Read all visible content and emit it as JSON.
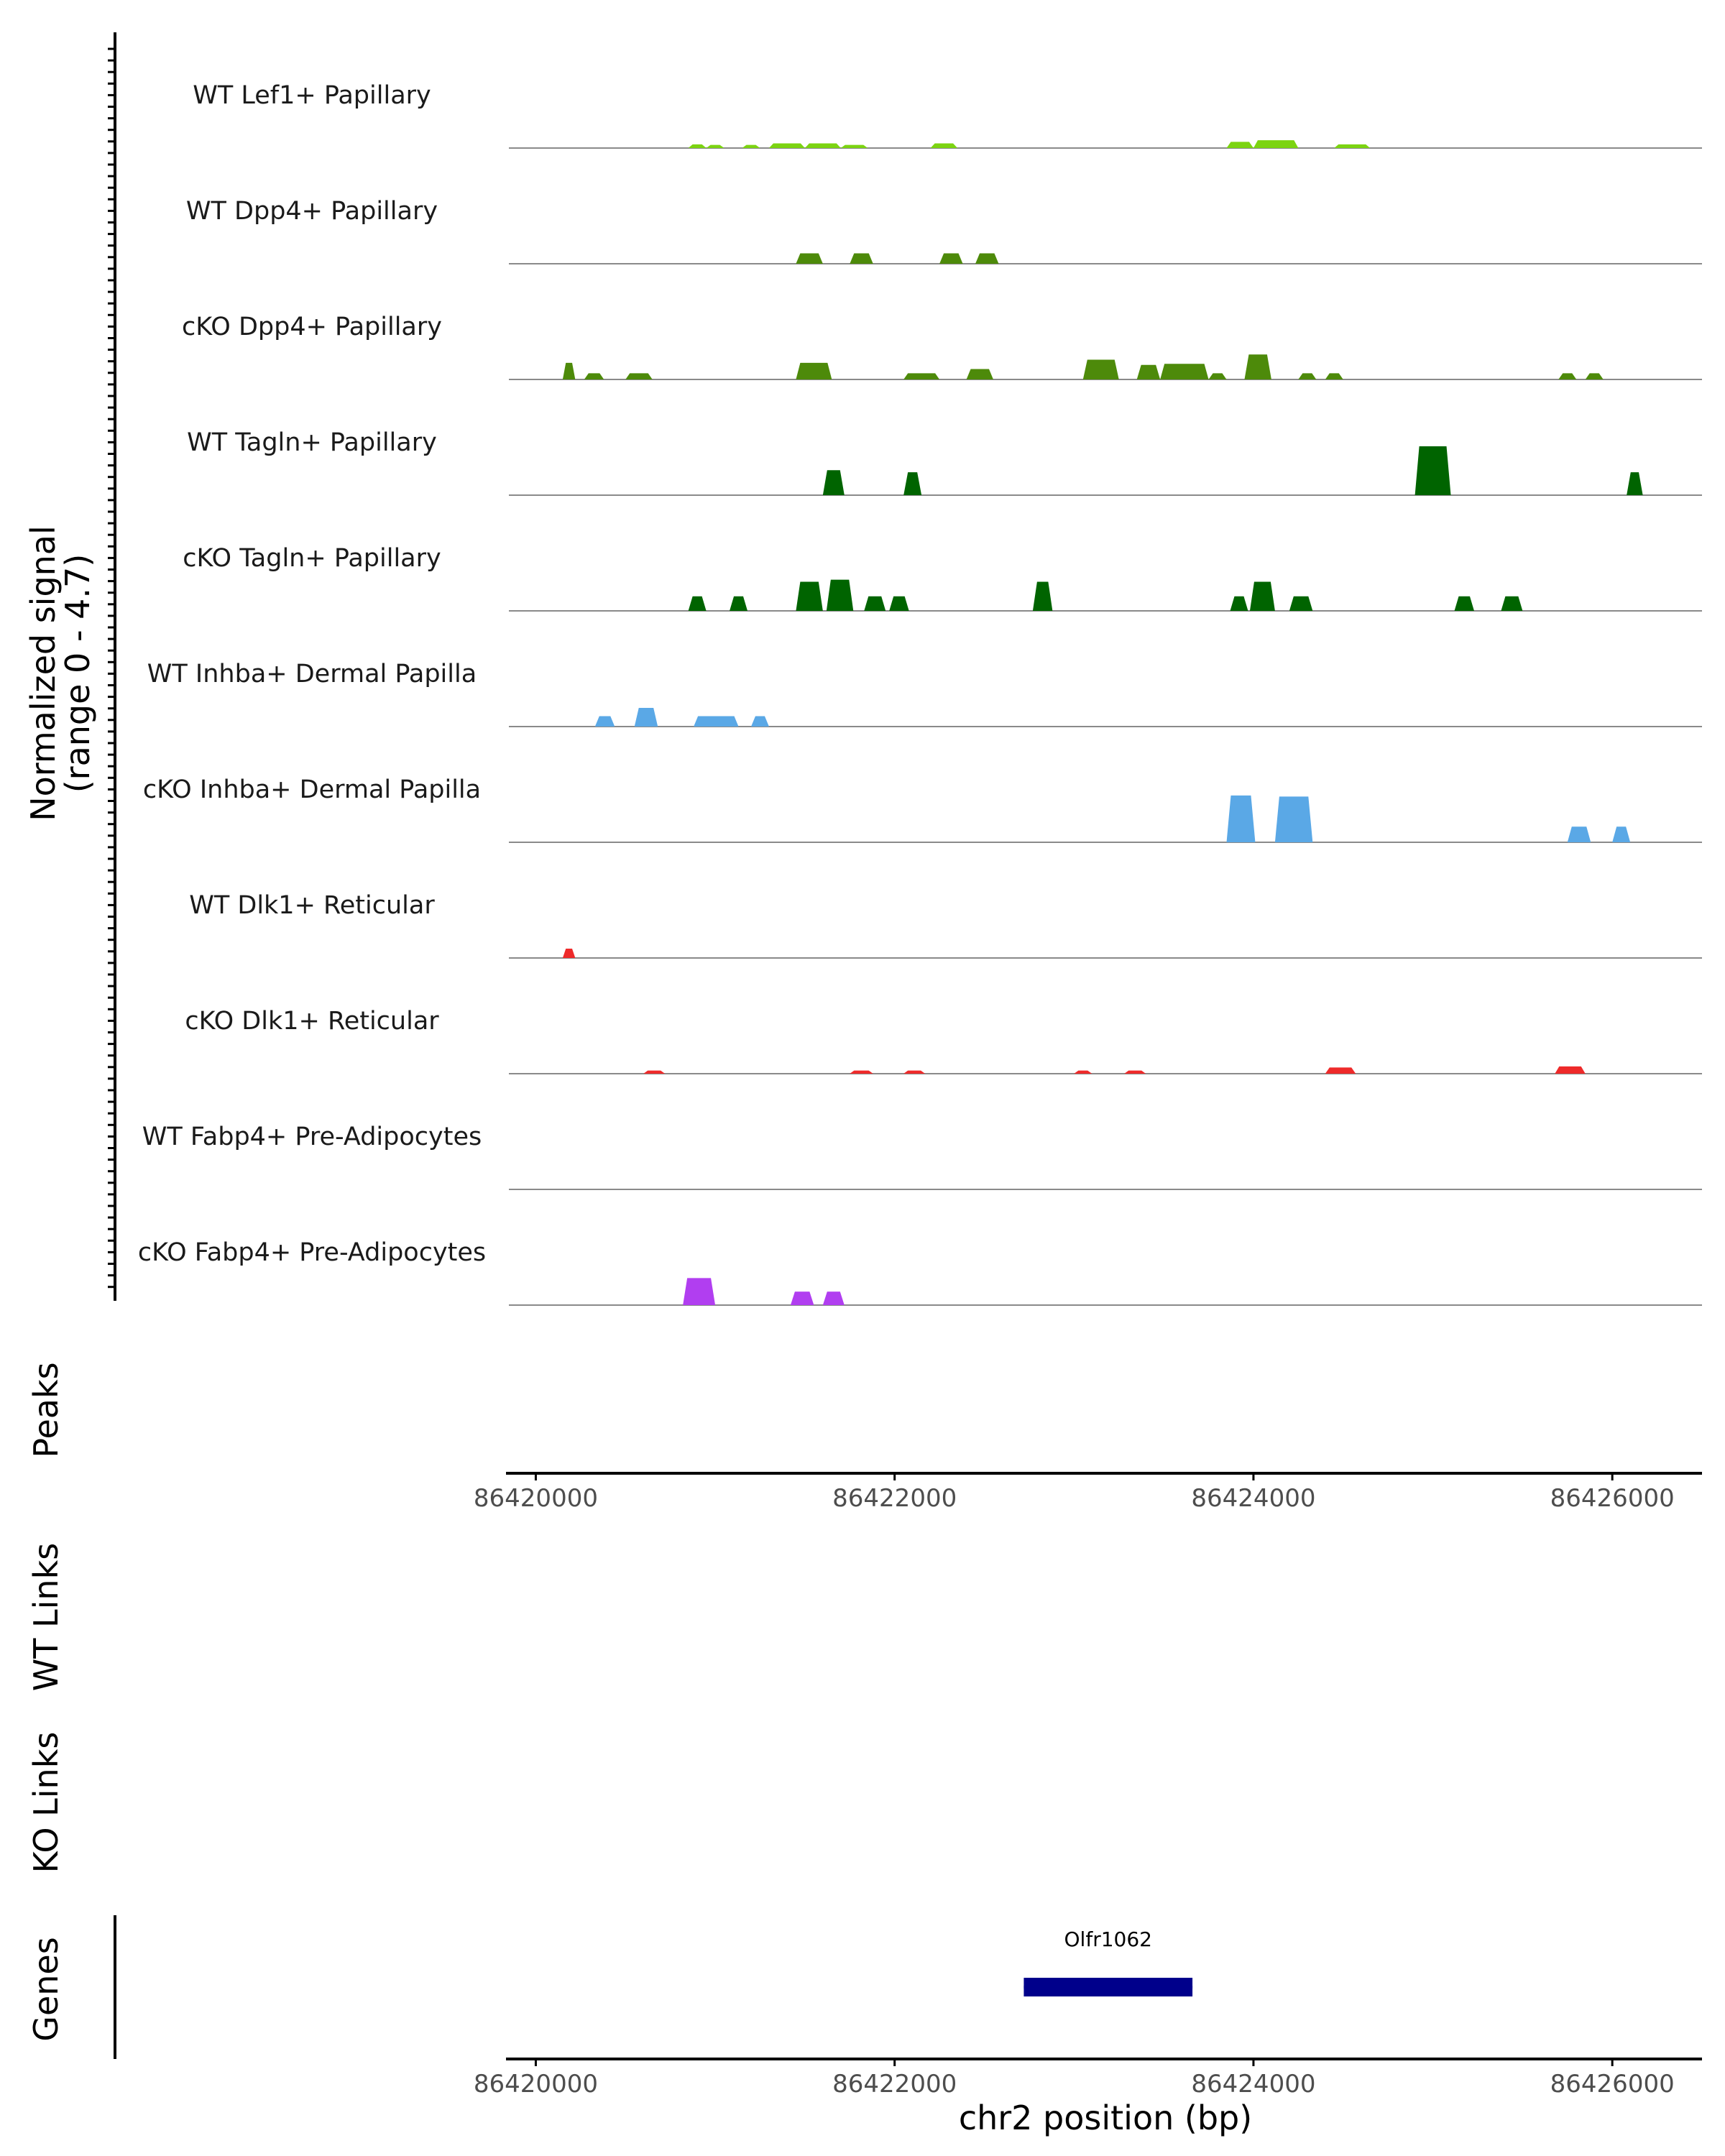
{
  "chart_data": {
    "type": "area",
    "title": "",
    "ylabel_line1": "Normalized signal",
    "ylabel_line2": "(range 0 - 4.7)",
    "y_range": [
      0,
      4.7
    ],
    "x_range": [
      86419850,
      86426500
    ],
    "colors": {
      "lef1": "#7cd411",
      "dpp4": "#4d8a0a",
      "tagln": "#006400",
      "inhba": "#5aa8e6",
      "dlk1": "#ee2a2a",
      "fabp4": "#b13ef0",
      "gene": "#00008b",
      "axis": "#000000",
      "baseline": "#8a8a8a"
    },
    "tracks": [
      {
        "label": "WT Lef1+ Papillary",
        "color_key": "lef1",
        "peaks": [
          [
            86420850,
            86420950,
            0.35
          ],
          [
            86420950,
            86421050,
            0.3
          ],
          [
            86421150,
            86421250,
            0.3
          ],
          [
            86421300,
            86421500,
            0.45
          ],
          [
            86421500,
            86421700,
            0.45
          ],
          [
            86421700,
            86421850,
            0.3
          ],
          [
            86422200,
            86422350,
            0.45
          ],
          [
            86423850,
            86424000,
            0.6
          ],
          [
            86424000,
            86424250,
            0.75
          ],
          [
            86424450,
            86424650,
            0.35
          ]
        ]
      },
      {
        "label": "WT Dpp4+ Papillary",
        "color_key": "dpp4",
        "peaks": [
          [
            86421450,
            86421600,
            1.0
          ],
          [
            86421750,
            86421880,
            1.0
          ],
          [
            86422250,
            86422380,
            1.0
          ],
          [
            86422450,
            86422580,
            1.0
          ]
        ]
      },
      {
        "label": "cKO Dpp4+ Papillary",
        "color_key": "dpp4",
        "peaks": [
          [
            86420150,
            86420220,
            1.6
          ],
          [
            86420270,
            86420380,
            0.6
          ],
          [
            86420500,
            86420650,
            0.6
          ],
          [
            86421450,
            86421650,
            1.6
          ],
          [
            86422050,
            86422250,
            0.6
          ],
          [
            86422400,
            86422550,
            1.0
          ],
          [
            86423050,
            86423250,
            1.9
          ],
          [
            86423350,
            86423480,
            1.4
          ],
          [
            86423480,
            86423750,
            1.5
          ],
          [
            86423750,
            86423850,
            0.6
          ],
          [
            86423950,
            86424100,
            2.4
          ],
          [
            86424250,
            86424350,
            0.6
          ],
          [
            86424400,
            86424500,
            0.6
          ],
          [
            86425700,
            86425800,
            0.6
          ],
          [
            86425850,
            86425950,
            0.6
          ]
        ]
      },
      {
        "label": "WT Tagln+ Papillary",
        "color_key": "tagln",
        "peaks": [
          [
            86421600,
            86421720,
            2.4
          ],
          [
            86422050,
            86422150,
            2.2
          ],
          [
            86424900,
            86425100,
            4.7
          ],
          [
            86426080,
            86426170,
            2.2
          ]
        ]
      },
      {
        "label": "cKO Tagln+ Papillary",
        "color_key": "tagln",
        "peaks": [
          [
            86420850,
            86420950,
            1.4
          ],
          [
            86421080,
            86421180,
            1.4
          ],
          [
            86421450,
            86421600,
            2.8
          ],
          [
            86421620,
            86421770,
            3.0
          ],
          [
            86421830,
            86421950,
            1.4
          ],
          [
            86421970,
            86422080,
            1.4
          ],
          [
            86422770,
            86422880,
            2.8
          ],
          [
            86423870,
            86423970,
            1.4
          ],
          [
            86423980,
            86424120,
            2.8
          ],
          [
            86424200,
            86424330,
            1.4
          ],
          [
            86425120,
            86425230,
            1.4
          ],
          [
            86425380,
            86425500,
            1.4
          ]
        ]
      },
      {
        "label": "WT Inhba+ Dermal Papilla",
        "color_key": "inhba",
        "peaks": [
          [
            86420330,
            86420440,
            1.0
          ],
          [
            86420550,
            86420680,
            1.8
          ],
          [
            86420880,
            86421130,
            1.0
          ],
          [
            86421200,
            86421300,
            1.0
          ]
        ]
      },
      {
        "label": "cKO Inhba+ Dermal Papilla",
        "color_key": "inhba",
        "peaks": [
          [
            86423850,
            86424010,
            4.5
          ],
          [
            86424120,
            86424330,
            4.4
          ],
          [
            86425750,
            86425880,
            1.5
          ],
          [
            86426000,
            86426100,
            1.5
          ]
        ]
      },
      {
        "label": "WT Dlk1+ Reticular",
        "color_key": "dlk1",
        "peaks": [
          [
            86420150,
            86420220,
            0.9
          ]
        ]
      },
      {
        "label": "cKO Dlk1+ Reticular",
        "color_key": "dlk1",
        "peaks": [
          [
            86420600,
            86420720,
            0.3
          ],
          [
            86421750,
            86421880,
            0.3
          ],
          [
            86422050,
            86422170,
            0.3
          ],
          [
            86423000,
            86423100,
            0.3
          ],
          [
            86423280,
            86423400,
            0.3
          ],
          [
            86424400,
            86424570,
            0.6
          ],
          [
            86425680,
            86425850,
            0.7
          ]
        ]
      },
      {
        "label": "WT Fabp4+ Pre-Adipocytes",
        "color_key": "fabp4",
        "peaks": []
      },
      {
        "label": "cKO Fabp4+ Pre-Adipocytes",
        "color_key": "fabp4",
        "peaks": [
          [
            86420820,
            86421000,
            2.6
          ],
          [
            86421420,
            86421550,
            1.3
          ],
          [
            86421600,
            86421720,
            1.3
          ]
        ]
      }
    ],
    "panel_labels": {
      "peaks": "Peaks",
      "wt_links": "WT Links",
      "ko_links": "KO Links",
      "genes": "Genes"
    },
    "xticks": [
      86420000,
      86422000,
      86424000,
      86426000
    ],
    "xtick_labels": [
      "86420000",
      "86422000",
      "86424000",
      "86426000"
    ],
    "xlabel": "chr2 position (bp)",
    "genes": [
      {
        "name": "Olfr1062",
        "start": 86422720,
        "end": 86423660
      }
    ]
  }
}
